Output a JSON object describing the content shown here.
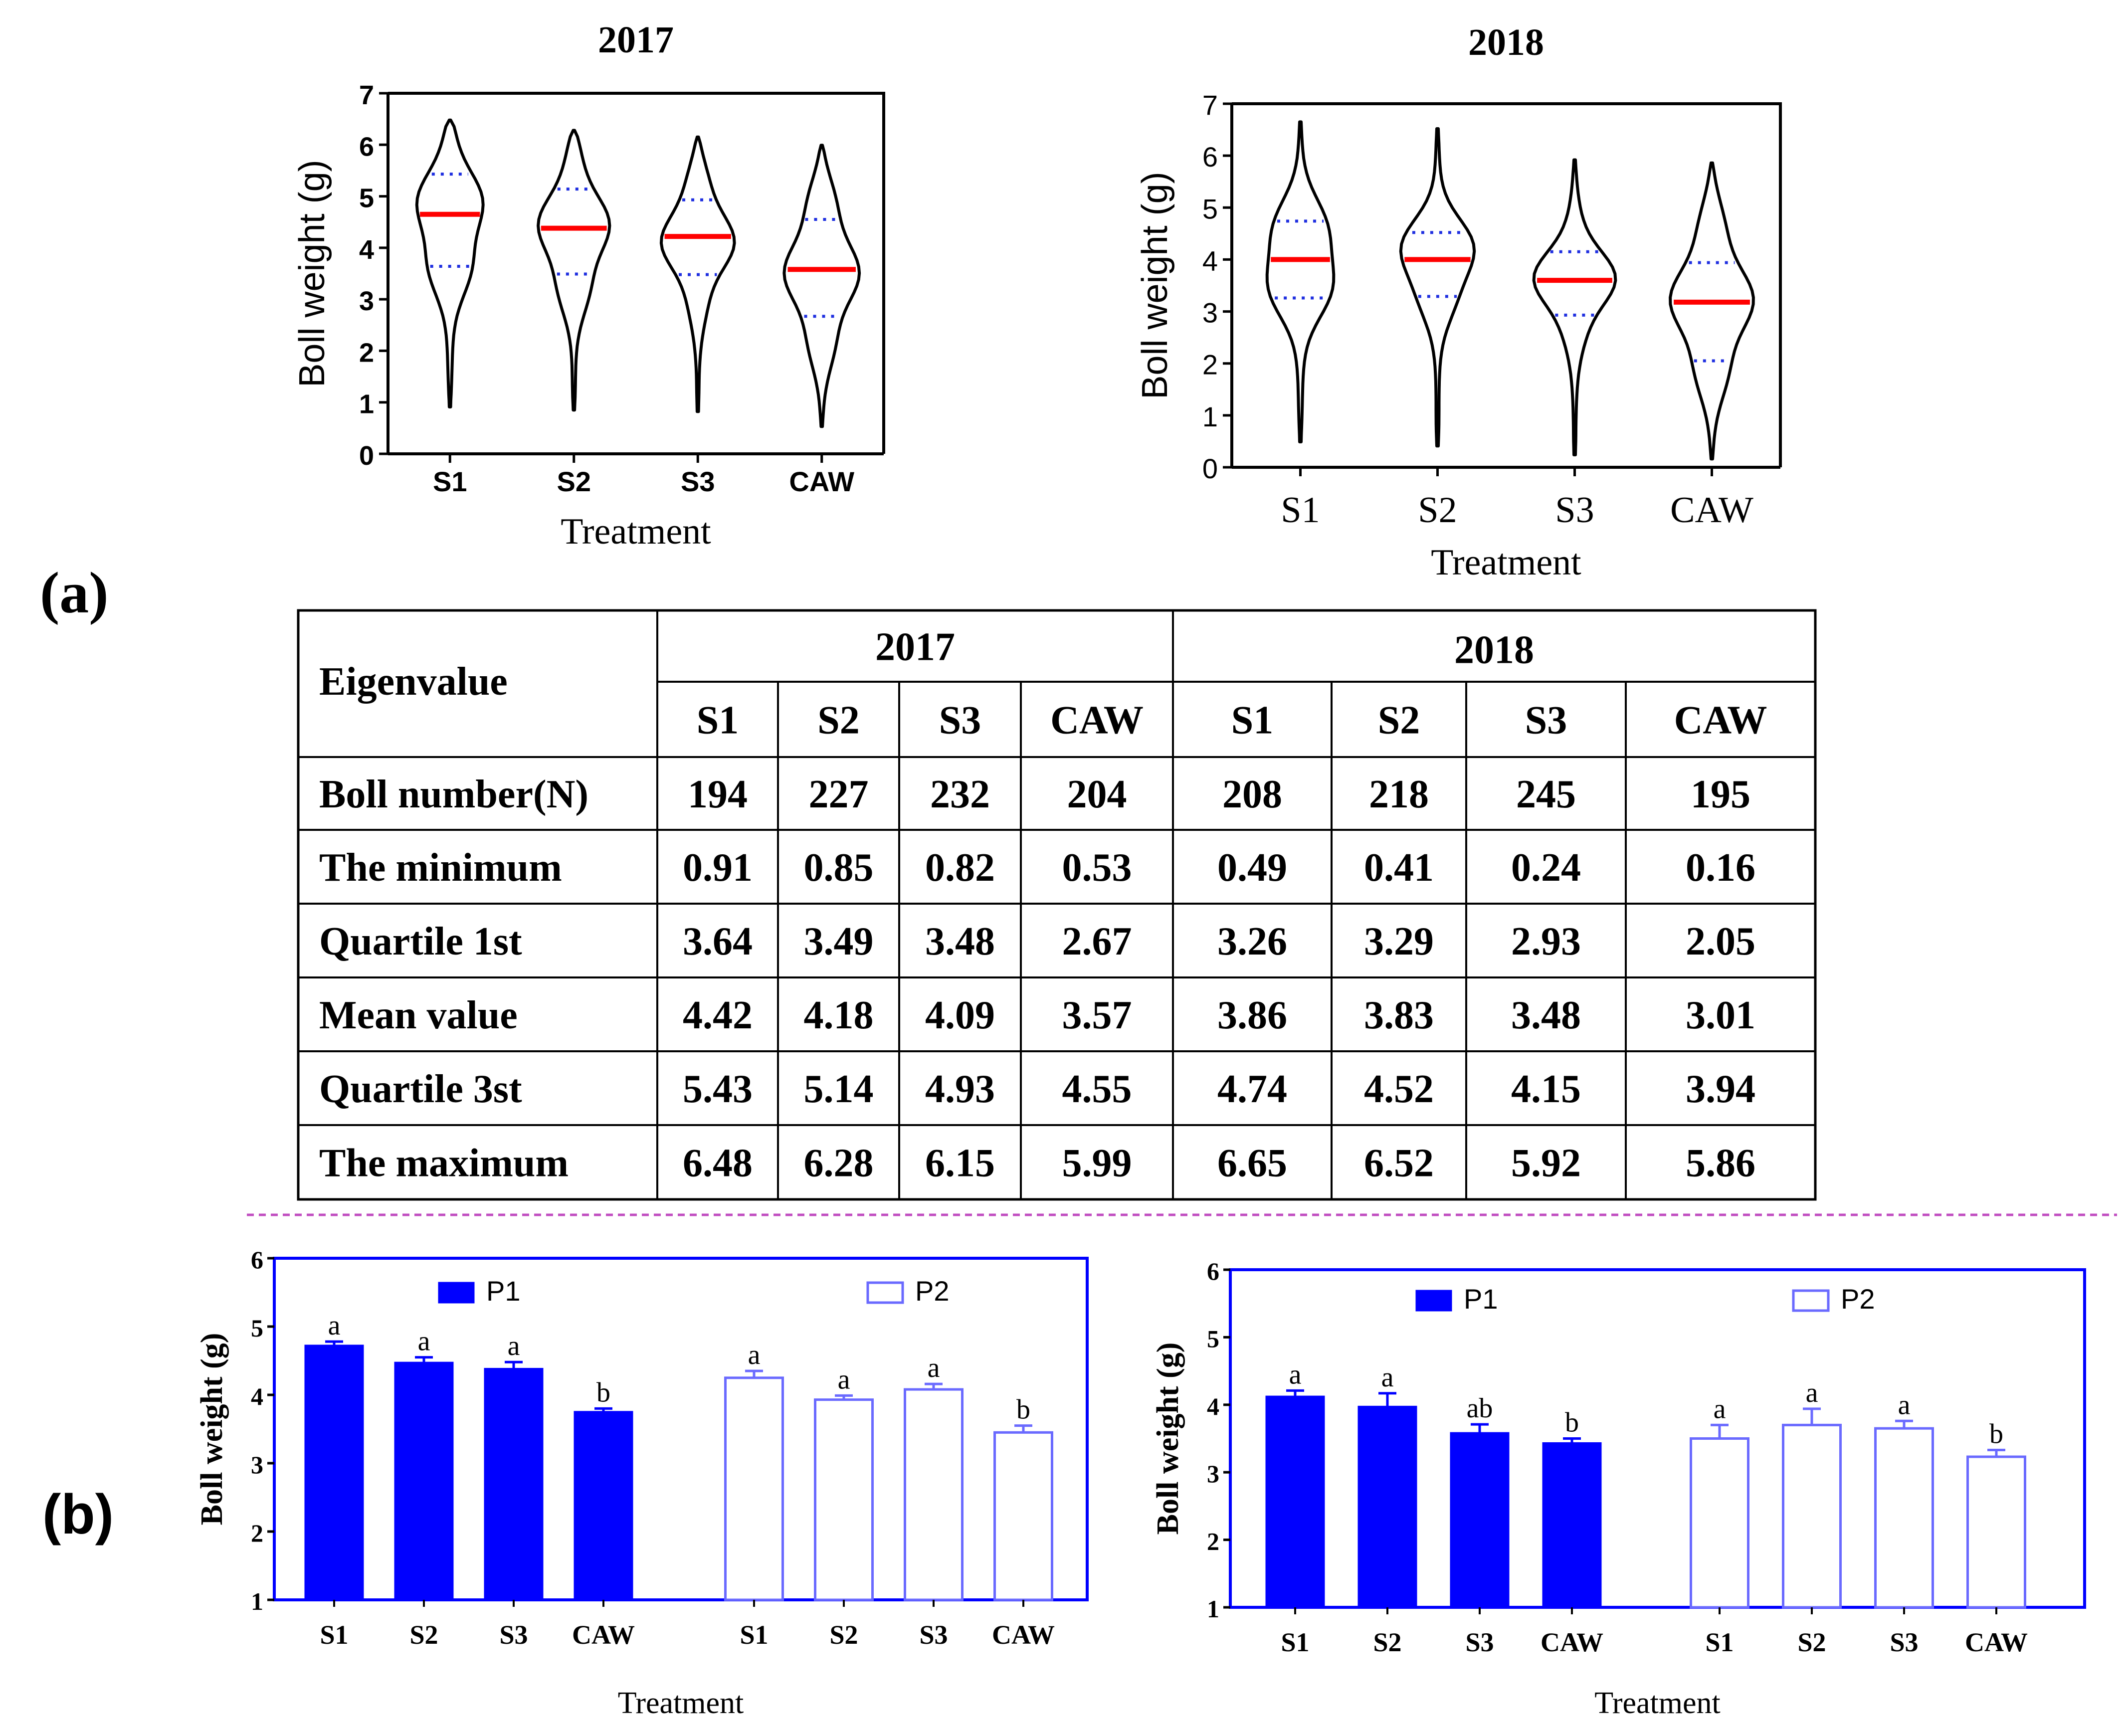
{
  "panel_labels": {
    "a": "(a)",
    "b": "(b)"
  },
  "colors": {
    "median": "#ff0000",
    "quartile": "#1f2fe0",
    "bar_blue": "#0000ff",
    "bar_outline": "#6a6aff",
    "divider": "#c04cc0"
  },
  "chart_data": [
    {
      "type": "violin",
      "title": "2017",
      "xlabel": "Treatment",
      "ylabel": "Boll weight (g)",
      "ylim": [
        0,
        7
      ],
      "yticks": [
        "0",
        "1",
        "2",
        "3",
        "4",
        "5",
        "6",
        "7"
      ],
      "categories": [
        "S1",
        "S2",
        "S3",
        "CAW"
      ],
      "min": [
        0.91,
        0.85,
        0.82,
        0.53
      ],
      "q1": [
        3.64,
        3.49,
        3.48,
        2.67
      ],
      "median": [
        4.65,
        4.38,
        4.22,
        3.58
      ],
      "q3": [
        5.43,
        5.14,
        4.93,
        4.55
      ],
      "max": [
        6.48,
        6.28,
        6.15,
        5.99
      ]
    },
    {
      "type": "violin",
      "title": "2018",
      "xlabel": "Treatment",
      "ylabel": "Boll weight (g)",
      "ylim": [
        0,
        7
      ],
      "yticks": [
        "0",
        "1",
        "2",
        "3",
        "4",
        "5",
        "6",
        "7"
      ],
      "categories": [
        "S1",
        "S2",
        "S3",
        "CAW"
      ],
      "min": [
        0.49,
        0.41,
        0.24,
        0.16
      ],
      "q1": [
        3.26,
        3.29,
        2.93,
        2.05
      ],
      "median": [
        4.0,
        4.0,
        3.6,
        3.18
      ],
      "q3": [
        4.74,
        4.52,
        4.15,
        3.94
      ],
      "max": [
        6.65,
        6.52,
        5.92,
        5.86
      ]
    },
    {
      "type": "bar",
      "xlabel": "Treatment",
      "ylabel": "Boll weight (g)",
      "ylim": [
        1,
        6
      ],
      "yticks": [
        "1",
        "2",
        "3",
        "4",
        "5",
        "6"
      ],
      "categories": [
        "S1",
        "S2",
        "S3",
        "CAW"
      ],
      "series": [
        {
          "name": "P1",
          "values": [
            4.72,
            4.47,
            4.38,
            3.75
          ],
          "errors": [
            0.06,
            0.08,
            0.1,
            0.05
          ],
          "letters": [
            "a",
            "a",
            "a",
            "b"
          ]
        },
        {
          "name": "P2",
          "values": [
            4.25,
            3.93,
            4.08,
            3.45
          ],
          "errors": [
            0.1,
            0.06,
            0.08,
            0.1
          ],
          "letters": [
            "a",
            "a",
            "a",
            "b"
          ]
        }
      ]
    },
    {
      "type": "bar",
      "xlabel": "Treatment",
      "ylabel": "Boll weight (g)",
      "ylim": [
        1,
        6
      ],
      "yticks": [
        "1",
        "2",
        "3",
        "4",
        "5",
        "6"
      ],
      "categories": [
        "S1",
        "S2",
        "S3",
        "CAW"
      ],
      "series": [
        {
          "name": "P1",
          "values": [
            4.12,
            3.97,
            3.58,
            3.43
          ],
          "errors": [
            0.09,
            0.2,
            0.13,
            0.07
          ],
          "letters": [
            "a",
            "a",
            "ab",
            "b"
          ]
        },
        {
          "name": "P2",
          "values": [
            3.5,
            3.7,
            3.65,
            3.23
          ],
          "errors": [
            0.2,
            0.24,
            0.11,
            0.1
          ],
          "letters": [
            "a",
            "a",
            "a",
            "b"
          ]
        }
      ]
    }
  ],
  "table": {
    "corner": "Eigenvalue",
    "years": [
      "2017",
      "2018"
    ],
    "columns": [
      "S1",
      "S2",
      "S3",
      "CAW",
      "S1",
      "S2",
      "S3",
      "CAW"
    ],
    "rows": [
      {
        "label": "Boll number(N)",
        "values": [
          "194",
          "227",
          "232",
          "204",
          "208",
          "218",
          "245",
          "195"
        ]
      },
      {
        "label": "The minimum",
        "values": [
          "0.91",
          "0.85",
          "0.82",
          "0.53",
          "0.49",
          "0.41",
          "0.24",
          "0.16"
        ]
      },
      {
        "label": "Quartile 1st",
        "values": [
          "3.64",
          "3.49",
          "3.48",
          "2.67",
          "3.26",
          "3.29",
          "2.93",
          "2.05"
        ]
      },
      {
        "label": "Mean value",
        "values": [
          "4.42",
          "4.18",
          "4.09",
          "3.57",
          "3.86",
          "3.83",
          "3.48",
          "3.01"
        ]
      },
      {
        "label": "Quartile 3st",
        "values": [
          "5.43",
          "5.14",
          "4.93",
          "4.55",
          "4.74",
          "4.52",
          "4.15",
          "3.94"
        ]
      },
      {
        "label": "The maximum",
        "values": [
          "6.48",
          "6.28",
          "6.15",
          "5.99",
          "6.65",
          "6.52",
          "5.92",
          "5.86"
        ]
      }
    ]
  }
}
